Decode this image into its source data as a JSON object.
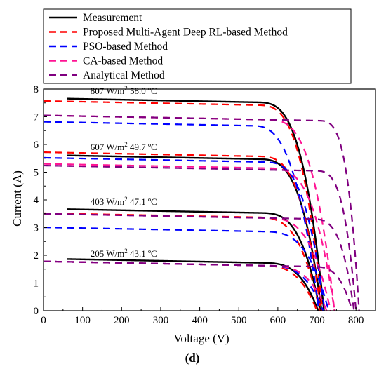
{
  "chart_data": {
    "type": "line",
    "panel_label": "(d)",
    "xlabel": "Voltage (V)",
    "ylabel": "Current (A)",
    "xlim": [
      0,
      850
    ],
    "ylim": [
      0,
      8
    ],
    "xticks": [
      0,
      100,
      200,
      300,
      400,
      500,
      600,
      700,
      800
    ],
    "yticks": [
      0,
      1,
      2,
      3,
      4,
      5,
      6,
      7,
      8
    ],
    "grid": false,
    "legend_position": "top",
    "legend": [
      {
        "name": "Measurement",
        "color": "#000000",
        "dash": "solid"
      },
      {
        "name": "Proposed Multi-Agent Deep RL-based Method",
        "color": "#ff0000",
        "dash": "dashed"
      },
      {
        "name": "PSO-based Method",
        "color": "#0000ff",
        "dash": "dashed"
      },
      {
        "name": "CA-based Method",
        "color": "#ff1493",
        "dash": "dashed"
      },
      {
        "name": "Analytical Method",
        "color": "#800080",
        "dash": "dashed"
      }
    ],
    "annotations": [
      {
        "text": "807 W/m",
        "sup": "2",
        "rest": " 58.0 ºC",
        "x": 120,
        "y": 7.82
      },
      {
        "text": "607 W/m",
        "sup": "2",
        "rest": " 49.7 ºC",
        "x": 120,
        "y": 5.8
      },
      {
        "text": "403 W/m",
        "sup": "2",
        "rest": " 47.1 ºC",
        "x": 120,
        "y": 3.82
      },
      {
        "text": "205 W/m",
        "sup": "2",
        "rest": " 43.1 ºC",
        "x": 120,
        "y": 1.95
      }
    ],
    "series": [
      {
        "name": "Measurement",
        "curves": [
          {
            "isc": 7.67,
            "voc": 718,
            "vk": 545,
            "n": 3.2,
            "g": 0.00027,
            "v0": 60
          },
          {
            "isc": 5.62,
            "voc": 712,
            "vk": 548,
            "n": 3.2,
            "g": 0.00027,
            "v0": 60
          },
          {
            "isc": 3.68,
            "voc": 708,
            "vk": 555,
            "n": 3.2,
            "g": 0.00027,
            "v0": 60
          },
          {
            "isc": 1.88,
            "voc": 703,
            "vk": 560,
            "n": 3.2,
            "g": 0.00027,
            "v0": 60
          }
        ]
      },
      {
        "name": "Proposed Multi-Agent Deep RL-based Method",
        "curves": [
          {
            "isc": 7.57,
            "voc": 714,
            "vk": 545,
            "n": 3.2,
            "g": 0.00027,
            "v0": 0
          },
          {
            "isc": 5.72,
            "voc": 710,
            "vk": 548,
            "n": 3.2,
            "g": 0.00027,
            "v0": 0
          },
          {
            "isc": 3.52,
            "voc": 707,
            "vk": 545,
            "n": 3.2,
            "g": 0.00027,
            "v0": 0
          },
          {
            "isc": 1.78,
            "voc": 700,
            "vk": 555,
            "n": 3.2,
            "g": 0.00027,
            "v0": 0
          }
        ]
      },
      {
        "name": "PSO-based Method",
        "curves": [
          {
            "isc": 6.82,
            "voc": 705,
            "vk": 535,
            "n": 2.8,
            "g": 0.00027,
            "v0": 0
          },
          {
            "isc": 5.52,
            "voc": 720,
            "vk": 560,
            "n": 3.2,
            "g": 0.00027,
            "v0": 0
          },
          {
            "isc": 3.01,
            "voc": 730,
            "vk": 560,
            "n": 3.2,
            "g": 0.00027,
            "v0": 0
          },
          {
            "isc": 1.78,
            "voc": 716,
            "vk": 570,
            "n": 3.2,
            "g": 0.00027,
            "v0": 0
          }
        ]
      },
      {
        "name": "CA-based Method",
        "curves": [
          {
            "isc": 7.05,
            "voc": 745,
            "vk": 570,
            "n": 3.2,
            "g": 0.00027,
            "v0": 0
          },
          {
            "isc": 5.3,
            "voc": 745,
            "vk": 575,
            "n": 3.2,
            "g": 0.00027,
            "v0": 0
          },
          {
            "isc": 3.5,
            "voc": 735,
            "vk": 570,
            "n": 3.2,
            "g": 0.00027,
            "v0": 0
          },
          {
            "isc": 1.78,
            "voc": 725,
            "vk": 575,
            "n": 3.2,
            "g": 0.00027,
            "v0": 0
          }
        ]
      },
      {
        "name": "Analytical Method",
        "curves": [
          {
            "isc": 7.05,
            "voc": 808,
            "vk": 700,
            "n": 3.6,
            "g": 0.00027,
            "v0": 0
          },
          {
            "isc": 5.24,
            "voc": 800,
            "vk": 690,
            "n": 3.6,
            "g": 0.00027,
            "v0": 0
          },
          {
            "isc": 3.5,
            "voc": 795,
            "vk": 680,
            "n": 3.6,
            "g": 0.00027,
            "v0": 0
          },
          {
            "isc": 1.78,
            "voc": 790,
            "vk": 680,
            "n": 3.6,
            "g": 0.00027,
            "v0": 0
          }
        ]
      }
    ]
  }
}
